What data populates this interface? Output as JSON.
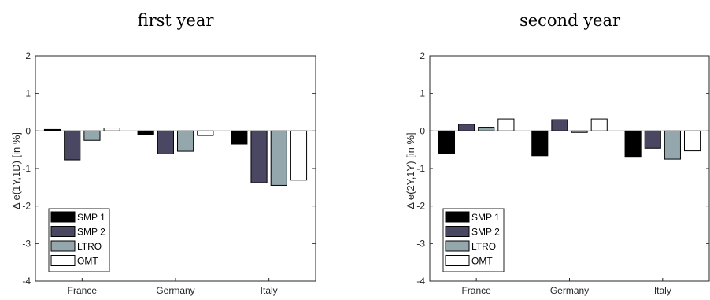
{
  "colors": {
    "SMP 1": "#000000",
    "SMP 2": "#4a4763",
    "LTRO": "#93a7ad",
    "OMT": "#ffffff"
  },
  "chart_data": [
    {
      "type": "bar",
      "title": "first year",
      "ylabel": "Δ e(1Y,1D) [in %]",
      "ylim": [
        -4,
        2
      ],
      "yticks": [
        "-4",
        "-3",
        "-2",
        "-1",
        "0",
        "1",
        "2"
      ],
      "categories": [
        "France",
        "Germany",
        "Italy"
      ],
      "series": [
        {
          "name": "SMP 1",
          "values": [
            0.04,
            -0.09,
            -0.35
          ]
        },
        {
          "name": "SMP 2",
          "values": [
            -0.77,
            -0.61,
            -1.38
          ]
        },
        {
          "name": "LTRO",
          "values": [
            -0.25,
            -0.54,
            -1.45
          ]
        },
        {
          "name": "OMT",
          "values": [
            0.08,
            -0.12,
            -1.31
          ]
        }
      ],
      "legend": "bottom-left",
      "grid": false
    },
    {
      "type": "bar",
      "title": "second year",
      "ylabel": "Δ e(2Y,1Y) [in %]",
      "ylim": [
        -4,
        2
      ],
      "yticks": [
        "-4",
        "-3",
        "-2",
        "-1",
        "0",
        "1",
        "2"
      ],
      "categories": [
        "France",
        "Germany",
        "Italy"
      ],
      "series": [
        {
          "name": "SMP 1",
          "values": [
            -0.6,
            -0.66,
            -0.7
          ]
        },
        {
          "name": "SMP 2",
          "values": [
            0.18,
            0.3,
            -0.46
          ]
        },
        {
          "name": "LTRO",
          "values": [
            0.1,
            -0.04,
            -0.75
          ]
        },
        {
          "name": "OMT",
          "values": [
            0.32,
            0.32,
            -0.53
          ]
        }
      ],
      "legend": "bottom-left",
      "grid": false
    }
  ]
}
